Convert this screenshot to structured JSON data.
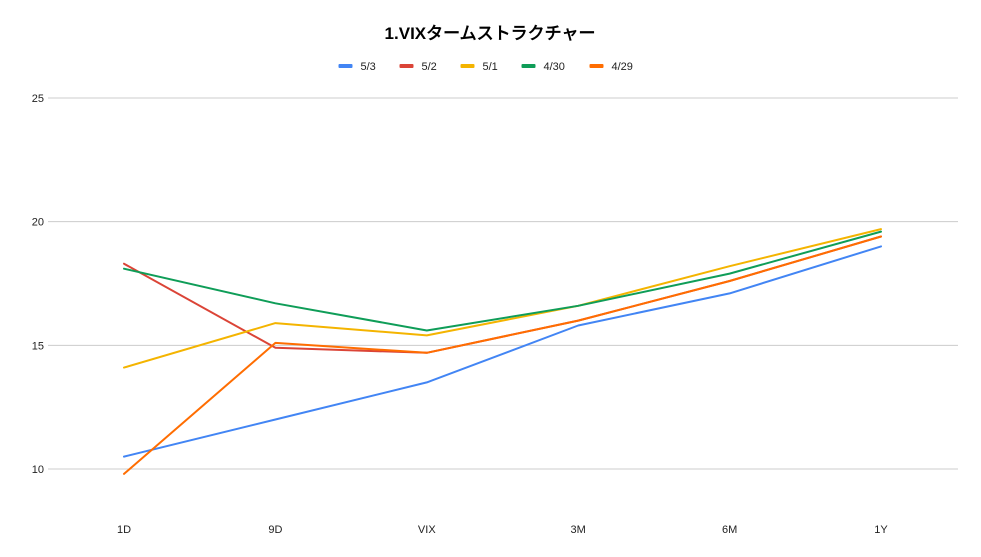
{
  "chart_data": {
    "type": "line",
    "title": "1.VIXタームストラクチャー",
    "xlabel": "",
    "ylabel": "",
    "categories": [
      "1D",
      "9D",
      "VIX",
      "3M",
      "6M",
      "1Y"
    ],
    "ylim": [
      8.5,
      25
    ],
    "yticks": [
      10,
      15,
      20,
      25
    ],
    "grid": true,
    "legend_position": "top",
    "series": [
      {
        "name": "5/3",
        "color": "#4285f4",
        "values": [
          10.5,
          12.0,
          13.5,
          15.8,
          17.1,
          19.0
        ]
      },
      {
        "name": "5/2",
        "color": "#db4437",
        "values": [
          18.3,
          14.9,
          14.7,
          16.0,
          17.6,
          19.4
        ]
      },
      {
        "name": "5/1",
        "color": "#f4b400",
        "values": [
          14.1,
          15.9,
          15.4,
          16.6,
          18.2,
          19.7
        ]
      },
      {
        "name": "4/30",
        "color": "#0f9d58",
        "values": [
          18.1,
          16.7,
          15.6,
          16.6,
          17.9,
          19.6
        ]
      },
      {
        "name": "4/29",
        "color": "#ff6d01",
        "values": [
          9.8,
          15.1,
          14.7,
          16.0,
          17.6,
          19.4
        ]
      }
    ]
  }
}
